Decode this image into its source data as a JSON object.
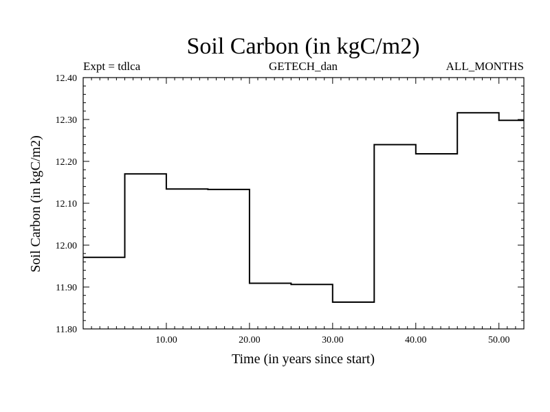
{
  "chart_data": {
    "type": "line",
    "title": "Soil Carbon (in kgC/m2)",
    "header_left": "Expt = tdlca",
    "header_center": "GETECH_dan",
    "header_right": "ALL_MONTHS",
    "xlabel": "Time (in years since start)",
    "ylabel": "Soil Carbon (in kgC/m2)",
    "xlim": [
      0,
      53
    ],
    "ylim": [
      11.8,
      12.4
    ],
    "x_ticks": [
      10,
      20,
      30,
      40,
      50
    ],
    "x_tick_labels": [
      "10.00",
      "20.00",
      "30.00",
      "40.00",
      "50.00"
    ],
    "y_ticks": [
      11.8,
      11.9,
      12.0,
      12.1,
      12.2,
      12.3,
      12.4
    ],
    "y_tick_labels": [
      "11.80",
      "11.90",
      "12.00",
      "12.10",
      "12.20",
      "12.30",
      "12.40"
    ],
    "grid": false,
    "series": [
      {
        "name": "Soil Carbon",
        "x": [
          0,
          5,
          5,
          10,
          10,
          15,
          15,
          20,
          20,
          25,
          25,
          30,
          30,
          35,
          35,
          40,
          40,
          45,
          45,
          50,
          50,
          53
        ],
        "y": [
          11.971,
          11.971,
          12.17,
          12.17,
          12.134,
          12.134,
          12.133,
          12.133,
          11.909,
          11.909,
          11.906,
          11.906,
          11.864,
          11.864,
          12.24,
          12.24,
          12.218,
          12.218,
          12.316,
          12.316,
          12.298,
          12.298
        ]
      }
    ]
  }
}
